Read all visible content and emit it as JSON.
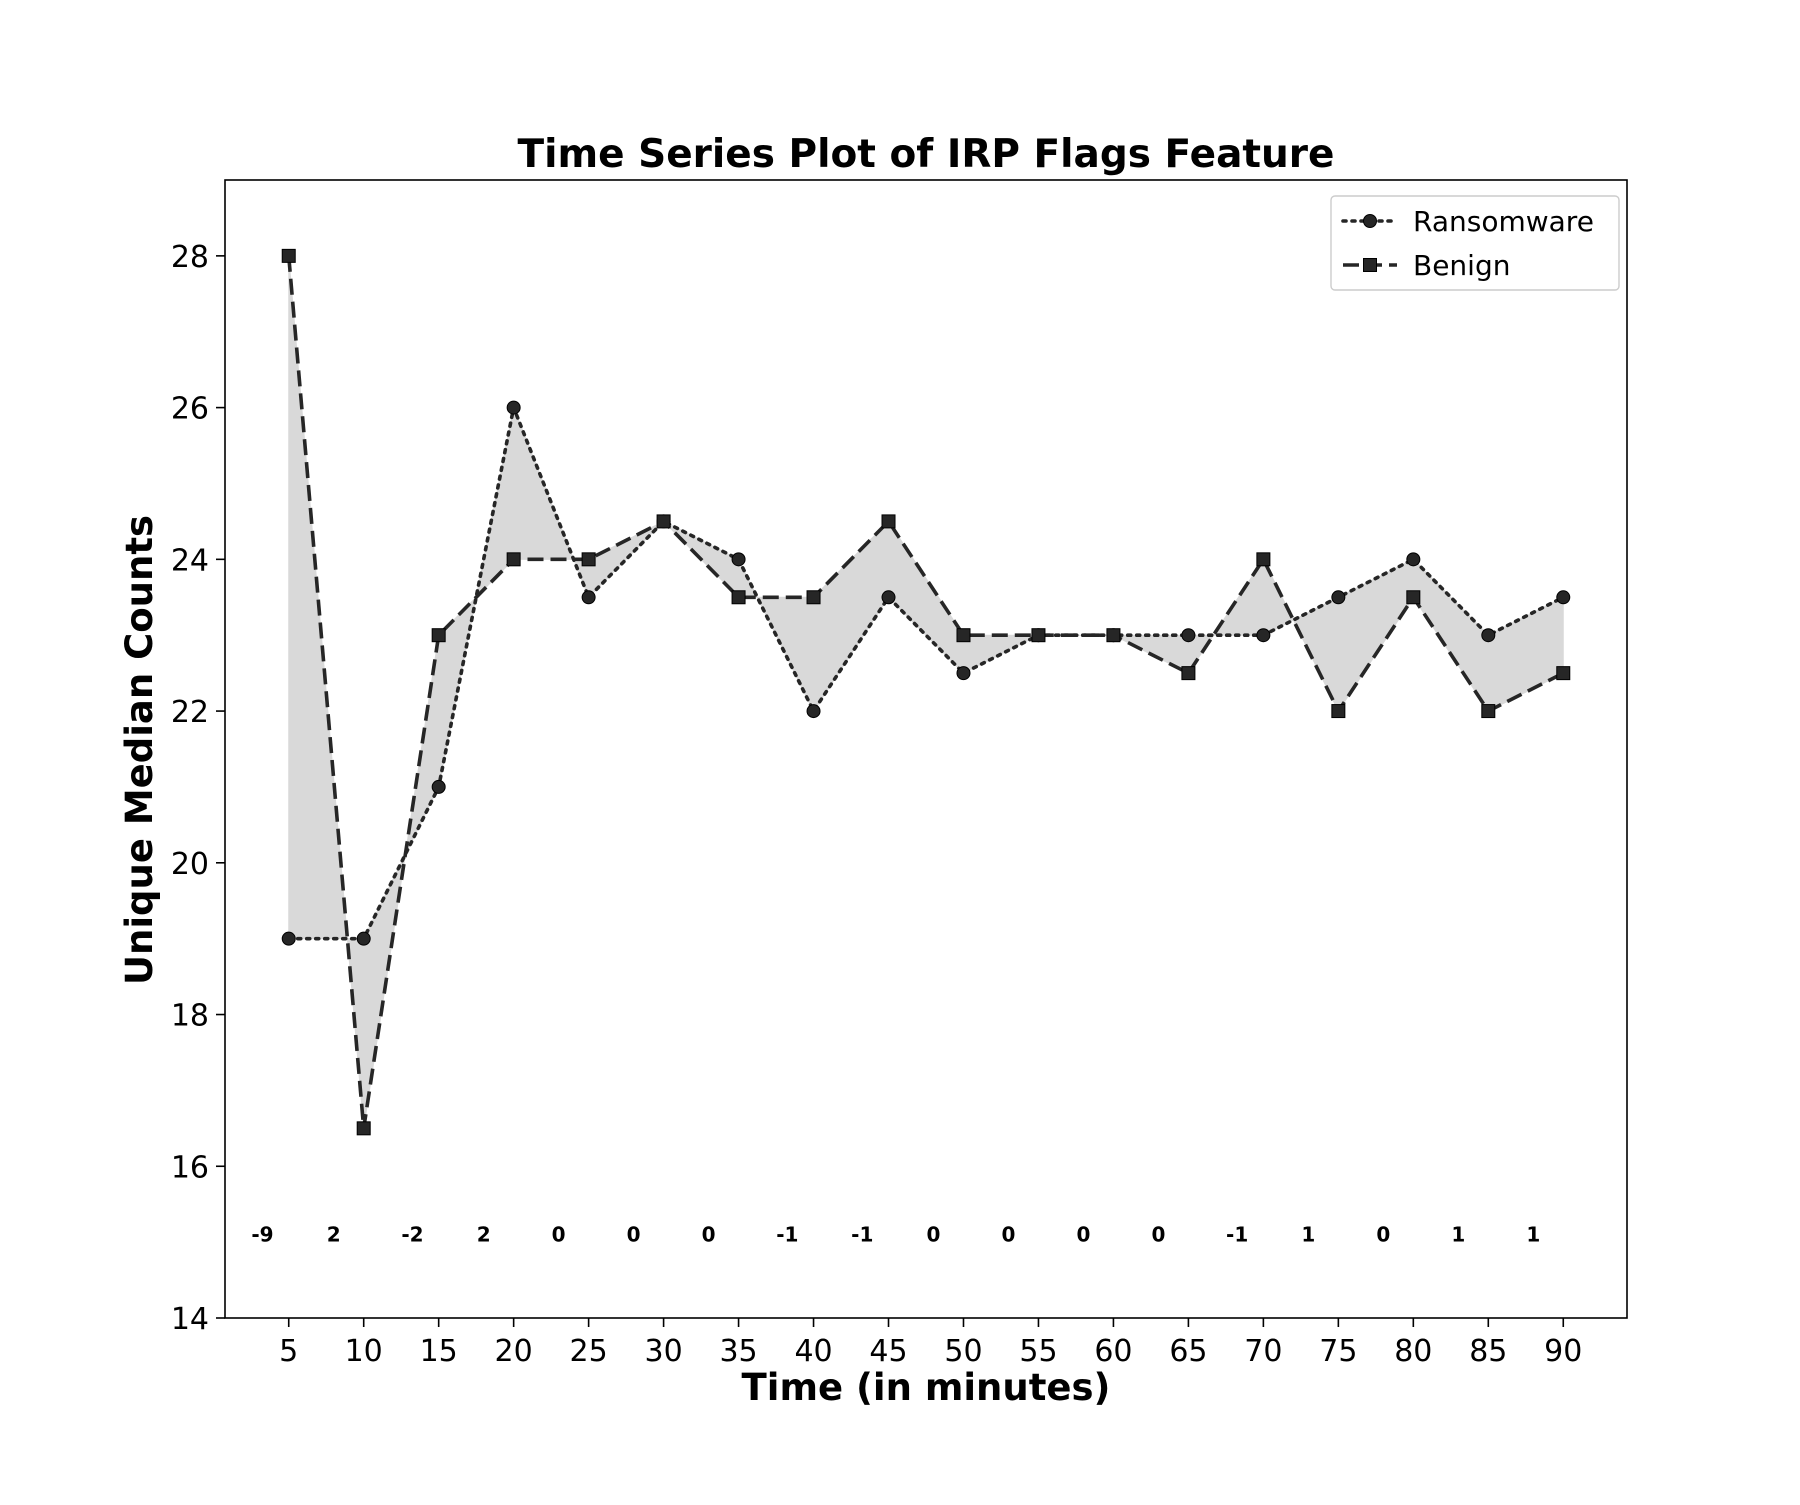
{
  "chart_data": {
    "type": "line",
    "title": "Time Series Plot of IRP Flags Feature",
    "xlabel": "Time (in minutes)",
    "ylabel": "Unique Median Counts",
    "x": [
      5,
      10,
      15,
      20,
      25,
      30,
      35,
      40,
      45,
      50,
      55,
      60,
      65,
      70,
      75,
      80,
      85,
      90
    ],
    "xlim": [
      0.75,
      94.25
    ],
    "ylim": [
      14,
      29
    ],
    "yticks": [
      14,
      16,
      18,
      20,
      22,
      24,
      26,
      28
    ],
    "series": [
      {
        "name": "Ransomware",
        "line_style": "dotted",
        "marker": "circle",
        "values": [
          19,
          19,
          21,
          26,
          23.5,
          24.5,
          24,
          22,
          23.5,
          22.5,
          23,
          23,
          23,
          23,
          23.5,
          24,
          23,
          23.5
        ]
      },
      {
        "name": "Benign",
        "line_style": "dashed",
        "marker": "square",
        "values": [
          28,
          16.5,
          23,
          24,
          24,
          24.5,
          23.5,
          23.5,
          24.5,
          23,
          23,
          23,
          22.5,
          24,
          22,
          23.5,
          22,
          22.5
        ]
      }
    ],
    "fill_between": {
      "series": [
        "Ransomware",
        "Benign"
      ],
      "color": "#d9d9d9"
    },
    "difference_labels": {
      "y": 15.1,
      "x": [
        3.25,
        8,
        13.25,
        18,
        23,
        28,
        33,
        38.25,
        43.25,
        48,
        53,
        58,
        63,
        68.25,
        73,
        78,
        83,
        88
      ],
      "labels": [
        "-9",
        "2",
        "-2",
        "2",
        "0",
        "0",
        "0",
        "-1",
        "-1",
        "0",
        "0",
        "0",
        "0",
        "-1",
        "1",
        "0",
        "1",
        "1"
      ]
    },
    "legend_position": "top-right",
    "grid": false,
    "colors": {
      "line": "#262626",
      "fill": "#d9d9d9",
      "axes": "#000000"
    }
  }
}
